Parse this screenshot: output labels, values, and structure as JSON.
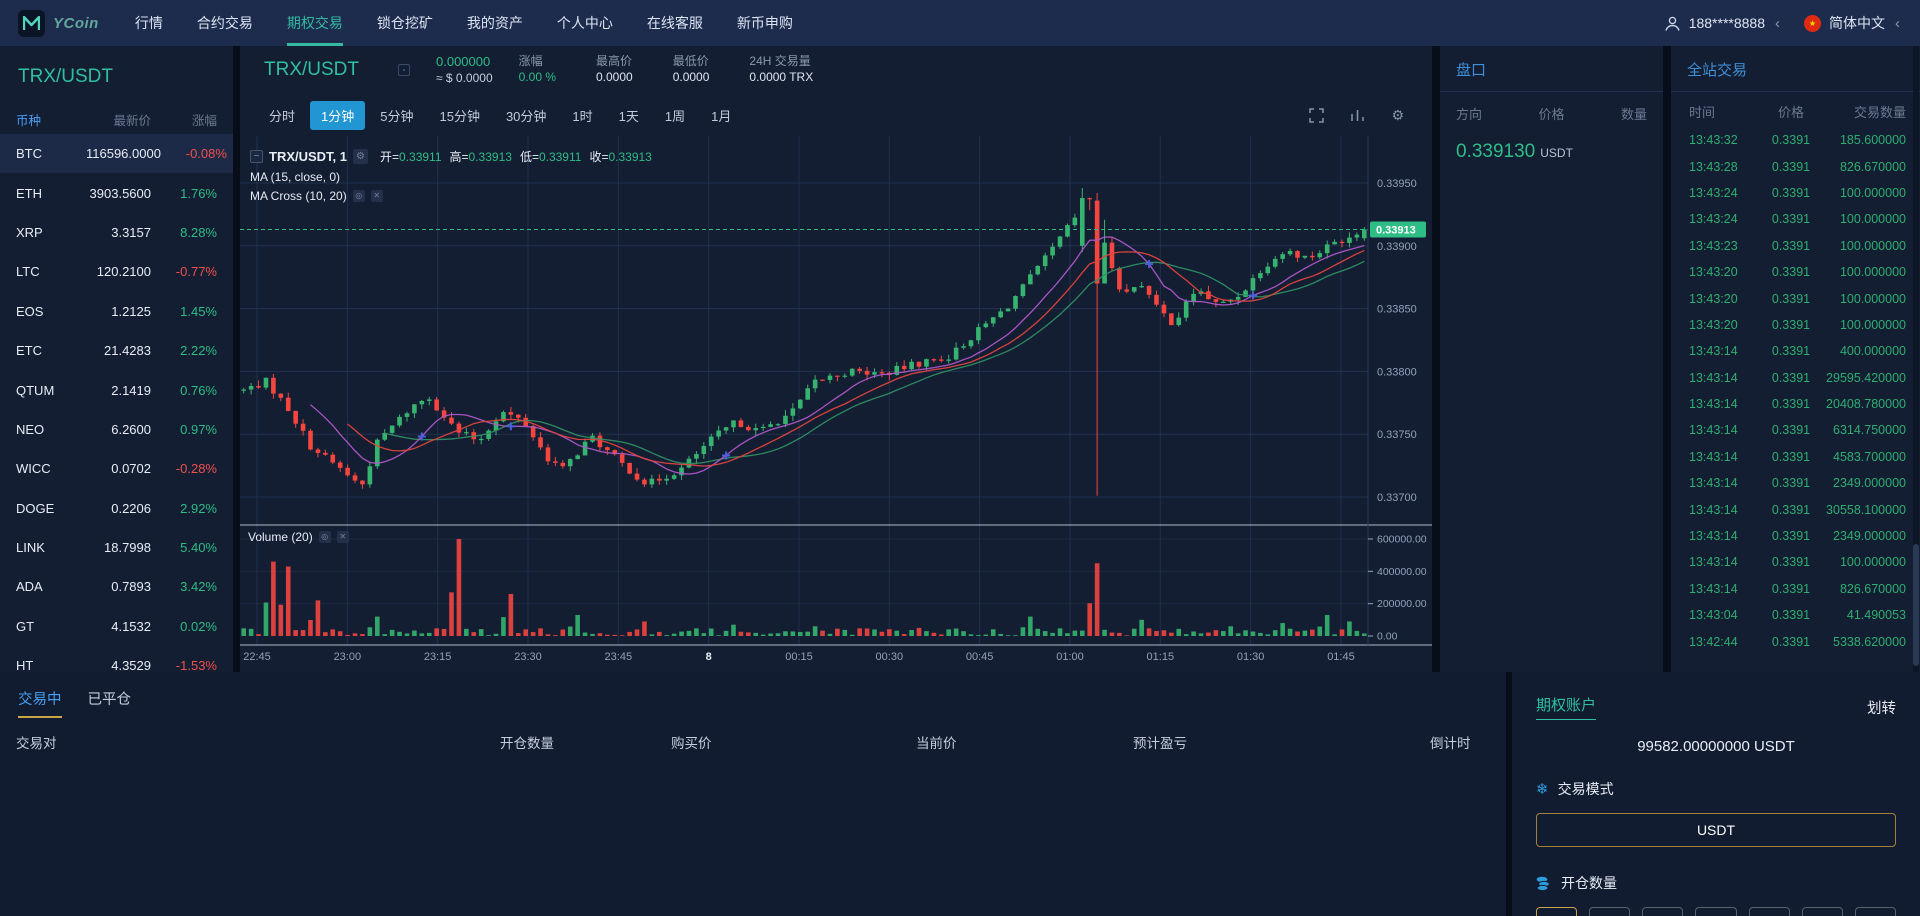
{
  "nav": {
    "brand": "YCoin",
    "items": [
      "行情",
      "合约交易",
      "期权交易",
      "锁仓挖矿",
      "我的资产",
      "个人中心",
      "在线客服",
      "新币申购"
    ],
    "active_item": "期权交易",
    "user_phone": "188****8888",
    "language": "简体中文"
  },
  "sidebar": {
    "title": "TRX/USDT",
    "columns": [
      "币种",
      "最新价",
      "涨幅"
    ],
    "selected_symbol": "BTC",
    "coins": [
      {
        "symbol": "BTC",
        "price": "116596.0000",
        "change": "-0.08%",
        "dir": "down"
      },
      {
        "symbol": "ETH",
        "price": "3903.5600",
        "change": "1.76%",
        "dir": "up"
      },
      {
        "symbol": "XRP",
        "price": "3.3157",
        "change": "8.28%",
        "dir": "up"
      },
      {
        "symbol": "LTC",
        "price": "120.2100",
        "change": "-0.77%",
        "dir": "down"
      },
      {
        "symbol": "EOS",
        "price": "1.2125",
        "change": "1.45%",
        "dir": "up"
      },
      {
        "symbol": "ETC",
        "price": "21.4283",
        "change": "2.22%",
        "dir": "up"
      },
      {
        "symbol": "QTUM",
        "price": "2.1419",
        "change": "0.76%",
        "dir": "up"
      },
      {
        "symbol": "NEO",
        "price": "6.2600",
        "change": "0.97%",
        "dir": "up"
      },
      {
        "symbol": "WICC",
        "price": "0.0702",
        "change": "-0.28%",
        "dir": "down"
      },
      {
        "symbol": "DOGE",
        "price": "0.2206",
        "change": "2.92%",
        "dir": "up"
      },
      {
        "symbol": "LINK",
        "price": "18.7998",
        "change": "5.40%",
        "dir": "up"
      },
      {
        "symbol": "ADA",
        "price": "0.7893",
        "change": "3.42%",
        "dir": "up"
      },
      {
        "symbol": "GT",
        "price": "4.1532",
        "change": "0.02%",
        "dir": "up"
      },
      {
        "symbol": "HT",
        "price": "4.3529",
        "change": "-1.53%",
        "dir": "down"
      }
    ]
  },
  "chart": {
    "pair": "TRX/USDT",
    "price": "0.000000",
    "approx": "≈ $ 0.0000",
    "stats": [
      {
        "label": "涨幅",
        "value": "0.00 %",
        "green": true
      },
      {
        "label": "最高价",
        "value": "0.0000"
      },
      {
        "label": "最低价",
        "value": "0.0000"
      },
      {
        "label": "24H 交易量",
        "value": "0.0000 TRX"
      }
    ],
    "timeframes": [
      "分时",
      "1分钟",
      "5分钟",
      "15分钟",
      "30分钟",
      "1时",
      "1天",
      "1周",
      "1月"
    ],
    "active_timeframe": "1分钟",
    "legend_title": "TRX/USDT, 1",
    "legend_ohlc": [
      {
        "label": "开",
        "value": "0.33911"
      },
      {
        "label": "高",
        "value": "0.33913"
      },
      {
        "label": "低",
        "value": "0.33911"
      },
      {
        "label": "收",
        "value": "0.33913"
      }
    ],
    "ma_label": "MA (15, close, 0)",
    "ma_cross_label": "MA Cross (10, 20)",
    "volume_label": "Volume (20)"
  },
  "chart_data": {
    "type": "candlestick",
    "current_price": 0.33913,
    "current_price_label": "0.33913",
    "price_ticks": [
      "0.33950",
      "0.33900",
      "0.33850",
      "0.33800",
      "0.33750",
      "0.33700"
    ],
    "volume_ticks": [
      "600000.00",
      "400000.00",
      "200000.00",
      "0.00"
    ],
    "time_ticks": [
      "22:45",
      "23:00",
      "23:15",
      "23:30",
      "23:45",
      "8",
      "00:15",
      "00:30",
      "00:45",
      "01:00",
      "01:15",
      "01:30",
      "01:45"
    ],
    "y_min": 0.337,
    "y_max": 0.3395,
    "volume_max": 600000,
    "n_candles": 152,
    "price_anchors": [
      [
        0,
        0.33785
      ],
      [
        0.02,
        0.33792
      ],
      [
        0.04,
        0.3377
      ],
      [
        0.06,
        0.3374
      ],
      [
        0.09,
        0.3372
      ],
      [
        0.105,
        0.33708
      ],
      [
        0.12,
        0.33745
      ],
      [
        0.15,
        0.33772
      ],
      [
        0.165,
        0.3378
      ],
      [
        0.19,
        0.33752
      ],
      [
        0.21,
        0.33745
      ],
      [
        0.23,
        0.33768
      ],
      [
        0.25,
        0.3376
      ],
      [
        0.27,
        0.33732
      ],
      [
        0.285,
        0.33722
      ],
      [
        0.31,
        0.33748
      ],
      [
        0.335,
        0.33728
      ],
      [
        0.36,
        0.3371
      ],
      [
        0.39,
        0.33722
      ],
      [
        0.42,
        0.33748
      ],
      [
        0.44,
        0.3376
      ],
      [
        0.46,
        0.33752
      ],
      [
        0.49,
        0.33768
      ],
      [
        0.51,
        0.33792
      ],
      [
        0.54,
        0.338
      ],
      [
        0.57,
        0.33798
      ],
      [
        0.6,
        0.33806
      ],
      [
        0.63,
        0.33812
      ],
      [
        0.66,
        0.33836
      ],
      [
        0.68,
        0.3385
      ],
      [
        0.7,
        0.33872
      ],
      [
        0.72,
        0.33895
      ],
      [
        0.74,
        0.3392
      ],
      [
        0.755,
        0.33938
      ],
      [
        0.77,
        0.33895
      ],
      [
        0.785,
        0.3386
      ],
      [
        0.8,
        0.33872
      ],
      [
        0.815,
        0.3385
      ],
      [
        0.83,
        0.33838
      ],
      [
        0.85,
        0.33866
      ],
      [
        0.87,
        0.33852
      ],
      [
        0.89,
        0.33862
      ],
      [
        0.91,
        0.33884
      ],
      [
        0.93,
        0.33896
      ],
      [
        0.95,
        0.3389
      ],
      [
        0.97,
        0.33901
      ],
      [
        1,
        0.33913
      ]
    ],
    "special_candles": [
      {
        "frac": 0.748,
        "o": 0.339,
        "h": 0.33946,
        "l": 0.33895,
        "c": 0.33938
      },
      {
        "frac": 0.762,
        "o": 0.33936,
        "h": 0.33942,
        "l": 0.33701,
        "c": 0.3387
      },
      {
        "frac": 1.0,
        "o": 0.33906,
        "h": 0.33915,
        "l": 0.33904,
        "c": 0.33913
      }
    ],
    "volume_spikes": [
      [
        0.025,
        460000
      ],
      [
        0.04,
        430000
      ],
      [
        0.065,
        220000
      ],
      [
        0.12,
        120000
      ],
      [
        0.19,
        600000
      ],
      [
        0.24,
        260000
      ],
      [
        0.3,
        130000
      ],
      [
        0.36,
        90000
      ],
      [
        0.44,
        70000
      ],
      [
        0.51,
        60000
      ],
      [
        0.6,
        50000
      ],
      [
        0.7,
        120000
      ],
      [
        0.762,
        450000
      ],
      [
        0.8,
        100000
      ],
      [
        0.88,
        60000
      ],
      [
        0.93,
        80000
      ],
      [
        0.965,
        130000
      ],
      [
        0.99,
        90000
      ]
    ],
    "colors": {
      "up": "#36b46f",
      "down": "#f4453f",
      "ma15": "#e0443e",
      "ma10": "#b057c9",
      "ma20": "#2f8f63",
      "grid": "#22304f",
      "axis_text": "#93a1b8",
      "badge": "#2ebd85",
      "cross": "#4a5fe0"
    }
  },
  "orderbook": {
    "title": "盘口",
    "columns": [
      "方向",
      "价格",
      "数量"
    ],
    "price": "0.339130",
    "unit": "USDT"
  },
  "trades": {
    "title": "全站交易",
    "columns": [
      "时间",
      "价格",
      "交易数量"
    ],
    "rows": [
      {
        "time": "13:43:32",
        "price": "0.3391",
        "amount": "185.600000"
      },
      {
        "time": "13:43:28",
        "price": "0.3391",
        "amount": "826.670000"
      },
      {
        "time": "13:43:24",
        "price": "0.3391",
        "amount": "100.000000"
      },
      {
        "time": "13:43:24",
        "price": "0.3391",
        "amount": "100.000000"
      },
      {
        "time": "13:43:23",
        "price": "0.3391",
        "amount": "100.000000"
      },
      {
        "time": "13:43:20",
        "price": "0.3391",
        "amount": "100.000000"
      },
      {
        "time": "13:43:20",
        "price": "0.3391",
        "amount": "100.000000"
      },
      {
        "time": "13:43:20",
        "price": "0.3391",
        "amount": "100.000000"
      },
      {
        "time": "13:43:14",
        "price": "0.3391",
        "amount": "400.000000"
      },
      {
        "time": "13:43:14",
        "price": "0.3391",
        "amount": "29595.420000"
      },
      {
        "time": "13:43:14",
        "price": "0.3391",
        "amount": "20408.780000"
      },
      {
        "time": "13:43:14",
        "price": "0.3391",
        "amount": "6314.750000"
      },
      {
        "time": "13:43:14",
        "price": "0.3391",
        "amount": "4583.700000"
      },
      {
        "time": "13:43:14",
        "price": "0.3391",
        "amount": "2349.000000"
      },
      {
        "time": "13:43:14",
        "price": "0.3391",
        "amount": "30558.100000"
      },
      {
        "time": "13:43:14",
        "price": "0.3391",
        "amount": "2349.000000"
      },
      {
        "time": "13:43:14",
        "price": "0.3391",
        "amount": "100.000000"
      },
      {
        "time": "13:43:14",
        "price": "0.3391",
        "amount": "826.670000"
      },
      {
        "time": "13:43:04",
        "price": "0.3391",
        "amount": "41.490053"
      },
      {
        "time": "13:42:44",
        "price": "0.3391",
        "amount": "5338.620000"
      }
    ]
  },
  "positions": {
    "tabs": [
      "交易中",
      "已平仓"
    ],
    "active_tab": "交易中",
    "columns": [
      "交易对",
      "开仓数量",
      "购买价",
      "当前价",
      "预计盈亏",
      "倒计时"
    ]
  },
  "account": {
    "title": "期权账户",
    "transfer": "划转",
    "balance": "99582.00000000 USDT",
    "mode_label": "交易模式",
    "mode_value": "USDT",
    "qty_label": "开仓数量",
    "preset_count": 7
  }
}
